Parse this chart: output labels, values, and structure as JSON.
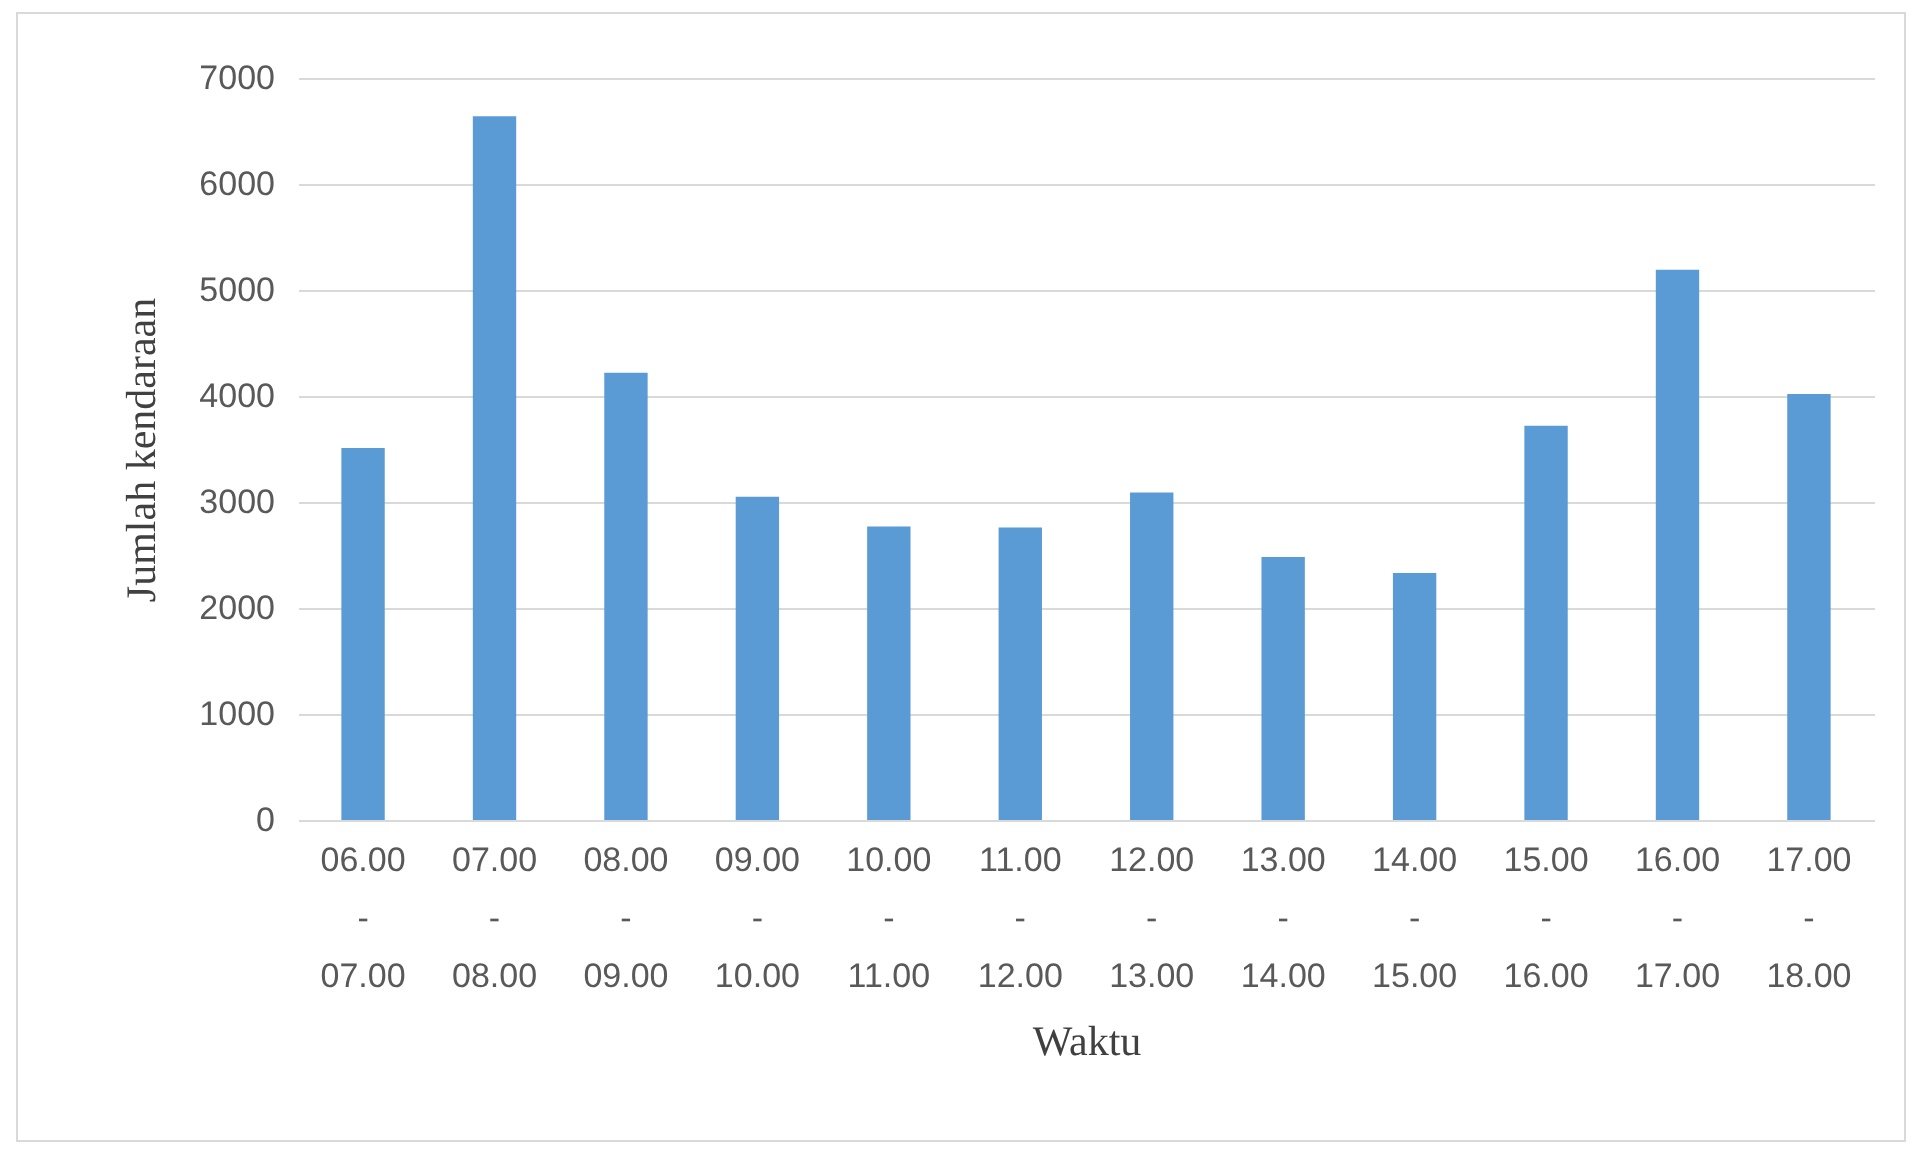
{
  "chart_data": {
    "type": "bar",
    "xlabel": "Waktu",
    "ylabel": "Jumlah kendaraan",
    "categories": [
      null,
      "06.00 - 07.00",
      "07.00 - 08.00",
      "08.00 - 09.00",
      "09.00 - 10.00",
      "10.00 - 11.00",
      "11.00 - 12.00",
      "12.00 - 13.00",
      "13.00 - 14.00",
      "14.00 - 15.00",
      "15.00 - 16.00",
      "16.00 - 17.00",
      "17.00 - 18.00"
    ],
    "values": [
      null,
      3510,
      6640,
      4220,
      3050,
      2770,
      2760,
      3090,
      2480,
      2330,
      3720,
      5190,
      4020
    ],
    "color": "#5b9bd5",
    "ylim": [
      0,
      7000
    ],
    "yticks": [
      0,
      1000,
      2000,
      3000,
      4000,
      5000,
      6000,
      7000
    ],
    "grid": "y"
  }
}
